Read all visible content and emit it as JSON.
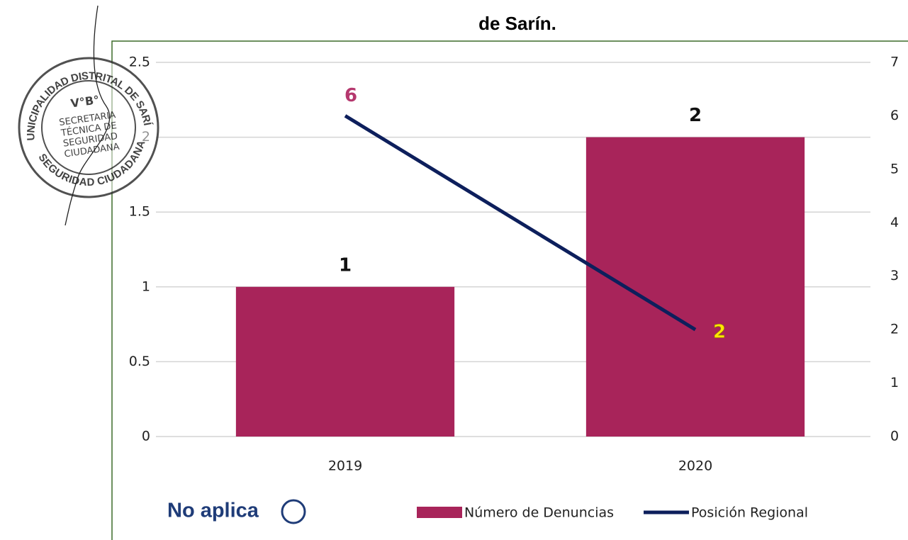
{
  "chart_data": {
    "type": "bar-line",
    "title": "de Sarín.",
    "categories": [
      "2019",
      "2020"
    ],
    "series": [
      {
        "name": "Número de Denuncias",
        "type": "bar",
        "color": "#a8245a",
        "values": [
          1,
          2
        ]
      },
      {
        "name": "Posición Regional",
        "type": "line",
        "axis": "y2",
        "color": "#0d1f5c",
        "values": [
          6,
          2
        ],
        "label_colors": [
          "#b5386e",
          "#ffe600"
        ]
      }
    ],
    "ylim": [
      0,
      2.5
    ],
    "yticks": [
      0,
      0.5,
      1,
      1.5,
      2,
      2.5
    ],
    "y2lim": [
      0,
      7
    ],
    "y2ticks": [
      0,
      1,
      2,
      3,
      4,
      5,
      6,
      7
    ],
    "grid": true,
    "legend": "bottom-right"
  },
  "note": "No aplica",
  "stamp": {
    "outer_top": "MUNICIPALIDAD DISTRITAL DE SARÍN",
    "outer_bottom": "SEGURIDAD CIUDADANA",
    "vobo": "V°B°",
    "center": [
      "SECRETARIA",
      "TÉCNICA DE",
      "SEGURIDAD",
      "CIUDADANA"
    ]
  }
}
